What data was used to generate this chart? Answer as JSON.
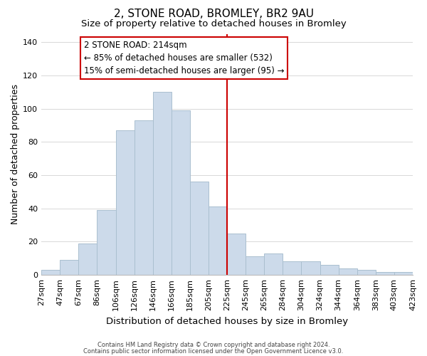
{
  "title": "2, STONE ROAD, BROMLEY, BR2 9AU",
  "subtitle": "Size of property relative to detached houses in Bromley",
  "xlabel": "Distribution of detached houses by size in Bromley",
  "ylabel": "Number of detached properties",
  "bar_labels": [
    "27sqm",
    "47sqm",
    "67sqm",
    "86sqm",
    "106sqm",
    "126sqm",
    "146sqm",
    "166sqm",
    "185sqm",
    "205sqm",
    "225sqm",
    "245sqm",
    "265sqm",
    "284sqm",
    "304sqm",
    "324sqm",
    "344sqm",
    "364sqm",
    "383sqm",
    "403sqm",
    "423sqm"
  ],
  "bar_values": [
    3,
    9,
    19,
    39,
    87,
    93,
    110,
    99,
    56,
    41,
    25,
    11,
    13,
    8,
    8,
    6,
    4,
    3,
    2,
    2
  ],
  "bar_color": "#ccdaea",
  "bar_edge_color": "#aabfcf",
  "grid_color": "#d8d8d8",
  "vline_x": 9.5,
  "vline_color": "#cc0000",
  "annotation_title": "2 STONE ROAD: 214sqm",
  "annotation_line1": "← 85% of detached houses are smaller (532)",
  "annotation_line2": "15% of semi-detached houses are larger (95) →",
  "annotation_box_edge": "#cc0000",
  "footer_line1": "Contains HM Land Registry data © Crown copyright and database right 2024.",
  "footer_line2": "Contains public sector information licensed under the Open Government Licence v3.0.",
  "ylim": [
    0,
    145
  ],
  "yticks": [
    0,
    20,
    40,
    60,
    80,
    100,
    120,
    140
  ],
  "title_fontsize": 11,
  "subtitle_fontsize": 9.5,
  "ylabel_fontsize": 9,
  "xlabel_fontsize": 9.5,
  "tick_fontsize": 8,
  "footer_fontsize": 6,
  "annot_fontsize": 8.5
}
